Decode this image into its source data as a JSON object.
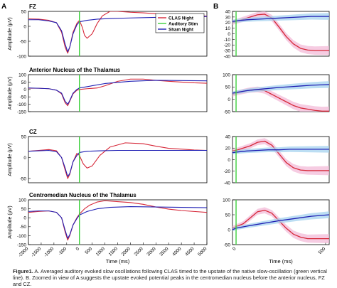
{
  "figure": {
    "panel_a_label": "A",
    "panel_b_label": "B"
  },
  "caption": {
    "label": "Figure1.",
    "text": "A. Averaged auditory evoked slow oscillations following CLAS timed to the upstate of the native slow-oscillation (green vertical line). B. Zoomed in view of A suggests the upstate evoked potential peaks in the centromedian nucleus before the anterior nucleus, FZ and CZ."
  },
  "colors": {
    "clas": "#d62839",
    "sham": "#1f1fb4",
    "stim": "#3cd03c",
    "clas_band": "#f2b6d6",
    "sham_band": "#9fd0ee"
  },
  "chart_data": [
    {
      "type": "line",
      "title": "FZ",
      "panel": "A",
      "xlabel": "",
      "ylabel": "Amplitude (μV)",
      "xlim": [
        -2000,
        5000
      ],
      "ylim": [
        -100,
        50
      ],
      "yticks": [
        50,
        0,
        -50,
        -100
      ],
      "stim_time": 0,
      "legend": {
        "position": "top-right",
        "entries": [
          "CLAS Night",
          "Auditory Stim",
          "Sham Night"
        ]
      },
      "series": [
        {
          "name": "CLAS Night",
          "x": [
            -2000,
            -1600,
            -1200,
            -900,
            -700,
            -560,
            -460,
            -380,
            -250,
            -100,
            0,
            120,
            200,
            300,
            500,
            700,
            900,
            1200,
            1500,
            2000,
            2500,
            3000,
            3500,
            4000,
            4500,
            5000
          ],
          "y": [
            25,
            24,
            20,
            12,
            -20,
            -70,
            -90,
            -70,
            -20,
            10,
            20,
            -5,
            -30,
            -40,
            -25,
            10,
            35,
            50,
            50,
            47,
            45,
            42,
            40,
            38,
            36,
            34
          ]
        },
        {
          "name": "Sham Night",
          "x": [
            -2000,
            -1600,
            -1200,
            -900,
            -700,
            -560,
            -460,
            -380,
            -250,
            -100,
            0,
            300,
            700,
            1200,
            2000,
            3000,
            4000,
            5000
          ],
          "y": [
            22,
            22,
            18,
            12,
            -15,
            -60,
            -85,
            -70,
            -25,
            5,
            15,
            20,
            24,
            26,
            28,
            30,
            32,
            33
          ]
        }
      ]
    },
    {
      "type": "line",
      "title": "Anterior Nucleus of the Thalamus",
      "panel": "A",
      "xlabel": "",
      "ylabel": "Amplitude (μV)",
      "xlim": [
        -2000,
        5000
      ],
      "ylim": [
        -150,
        100
      ],
      "yticks": [
        100,
        50,
        0,
        -50,
        -100,
        -150
      ],
      "stim_time": 0,
      "series": [
        {
          "name": "CLAS Night",
          "x": [
            -2000,
            -1600,
            -1200,
            -900,
            -700,
            -560,
            -460,
            -380,
            -250,
            -100,
            0,
            300,
            700,
            1000,
            1500,
            2000,
            2500,
            3000,
            3500,
            4000,
            4500,
            5000
          ],
          "y": [
            8,
            8,
            5,
            -5,
            -30,
            -90,
            -110,
            -80,
            -30,
            -5,
            0,
            5,
            10,
            25,
            55,
            70,
            70,
            62,
            55,
            50,
            45,
            42
          ]
        },
        {
          "name": "Sham Night",
          "x": [
            -2000,
            -1600,
            -1200,
            -900,
            -700,
            -560,
            -460,
            -380,
            -250,
            -100,
            0,
            500,
            1000,
            2000,
            3000,
            4000,
            5000
          ],
          "y": [
            10,
            8,
            5,
            -5,
            -25,
            -80,
            -100,
            -75,
            -25,
            0,
            10,
            25,
            40,
            55,
            62,
            60,
            58
          ]
        }
      ]
    },
    {
      "type": "line",
      "title": "CZ",
      "panel": "A",
      "xlabel": "",
      "ylabel": "Amplitude (μV)",
      "xlim": [
        -2000,
        5000
      ],
      "ylim": [
        -60,
        50
      ],
      "yticks": [
        50,
        0,
        -50
      ],
      "stim_time": 0,
      "series": [
        {
          "name": "CLAS Night",
          "x": [
            -2000,
            -1600,
            -1200,
            -900,
            -700,
            -560,
            -460,
            -380,
            -250,
            -100,
            0,
            150,
            300,
            500,
            800,
            1200,
            1800,
            2500,
            3000,
            3500,
            4000,
            4500,
            5000
          ],
          "y": [
            15,
            17,
            19,
            16,
            0,
            -30,
            -50,
            -40,
            -10,
            10,
            5,
            -15,
            -25,
            -20,
            5,
            25,
            35,
            33,
            27,
            22,
            20,
            18,
            17
          ]
        },
        {
          "name": "Sham Night",
          "x": [
            -2000,
            -1600,
            -1200,
            -900,
            -700,
            -560,
            -460,
            -380,
            -250,
            -100,
            0,
            300,
            800,
            1500,
            2500,
            3500,
            4500,
            5000
          ],
          "y": [
            15,
            16,
            17,
            14,
            0,
            -25,
            -45,
            -38,
            -10,
            5,
            12,
            15,
            16,
            17,
            17,
            17,
            17,
            17
          ]
        }
      ]
    },
    {
      "type": "line",
      "title": "Centromedian Nucleus of the Thalamus",
      "panel": "A",
      "xlabel": "Time (ms)",
      "ylabel": "Amplitude (μV)",
      "xlim": [
        -2000,
        5000
      ],
      "ylim": [
        -150,
        100
      ],
      "yticks": [
        100,
        50,
        0,
        -50,
        -100,
        -150
      ],
      "xticks": [
        -2000,
        -1500,
        -1000,
        -500,
        0,
        500,
        1000,
        1500,
        2000,
        2500,
        3000,
        3500,
        4000,
        4500,
        5000
      ],
      "stim_time": 0,
      "series": [
        {
          "name": "CLAS Night",
          "x": [
            -2000,
            -1600,
            -1200,
            -900,
            -700,
            -560,
            -460,
            -380,
            -250,
            -100,
            0,
            200,
            400,
            700,
            1000,
            1500,
            2000,
            2500,
            3000,
            3500,
            4000,
            4500,
            5000
          ],
          "y": [
            30,
            35,
            38,
            30,
            0,
            -80,
            -125,
            -100,
            -40,
            0,
            20,
            50,
            70,
            88,
            95,
            90,
            85,
            75,
            60,
            48,
            40,
            35,
            30
          ]
        },
        {
          "name": "Sham Night",
          "x": [
            -2000,
            -1600,
            -1200,
            -900,
            -700,
            -560,
            -460,
            -380,
            -250,
            -100,
            0,
            300,
            700,
            1200,
            2000,
            3000,
            4000,
            5000
          ],
          "y": [
            35,
            38,
            38,
            30,
            0,
            -70,
            -115,
            -95,
            -40,
            -5,
            15,
            35,
            50,
            58,
            62,
            60,
            58,
            56
          ]
        }
      ]
    },
    {
      "type": "line",
      "title": "",
      "panel": "B",
      "xlabel": "",
      "ylabel": "",
      "xlim": [
        -20,
        520
      ],
      "ylim": [
        -40,
        40
      ],
      "yticks": [
        40,
        30,
        20,
        10,
        0,
        -10,
        -20,
        -30,
        -40
      ],
      "stim_time": 0,
      "series": [
        {
          "name": "CLAS Night",
          "x": [
            -20,
            0,
            40,
            80,
            120,
            160,
            200,
            240,
            280,
            320,
            360,
            400,
            440,
            480,
            520
          ],
          "y": [
            20,
            22,
            26,
            30,
            34,
            35,
            28,
            12,
            -5,
            -18,
            -26,
            -29,
            -30,
            -30,
            -30
          ]
        },
        {
          "name": "Sham Night",
          "x": [
            -20,
            0,
            60,
            120,
            180,
            240,
            300,
            360,
            420,
            480,
            520
          ],
          "y": [
            22,
            23,
            25,
            26,
            27,
            28,
            29,
            30,
            31,
            31,
            31
          ]
        }
      ]
    },
    {
      "type": "line",
      "title": "",
      "panel": "B",
      "xlabel": "",
      "ylabel": "",
      "xlim": [
        -20,
        520
      ],
      "ylim": [
        -50,
        100
      ],
      "yticks": [
        100,
        50,
        0,
        -50
      ],
      "stim_time": 0,
      "series": [
        {
          "name": "CLAS Night",
          "x": [
            -20,
            0,
            40,
            80,
            120,
            160,
            200,
            240,
            280,
            320,
            360,
            400,
            440,
            480,
            520
          ],
          "y": [
            20,
            25,
            32,
            38,
            40,
            35,
            20,
            5,
            -10,
            -25,
            -35,
            -40,
            -45,
            -48,
            -48
          ]
        },
        {
          "name": "Sham Night",
          "x": [
            -20,
            0,
            60,
            120,
            180,
            240,
            300,
            360,
            420,
            480,
            520
          ],
          "y": [
            25,
            28,
            35,
            40,
            44,
            48,
            51,
            54,
            57,
            59,
            60
          ]
        }
      ]
    },
    {
      "type": "line",
      "title": "",
      "panel": "B",
      "xlabel": "",
      "ylabel": "",
      "xlim": [
        -20,
        520
      ],
      "ylim": [
        -40,
        40
      ],
      "yticks": [
        40,
        20,
        0,
        -20,
        -40
      ],
      "stim_time": 0,
      "series": [
        {
          "name": "CLAS Night",
          "x": [
            -20,
            0,
            40,
            80,
            120,
            160,
            200,
            240,
            280,
            320,
            360,
            400,
            440,
            480,
            520
          ],
          "y": [
            15,
            16,
            20,
            24,
            30,
            32,
            25,
            10,
            -5,
            -14,
            -18,
            -19,
            -19,
            -19,
            -19
          ]
        },
        {
          "name": "Sham Night",
          "x": [
            -20,
            0,
            60,
            120,
            180,
            240,
            300,
            360,
            420,
            480,
            520
          ],
          "y": [
            12,
            13,
            15,
            16,
            17,
            17,
            18,
            18,
            18,
            18,
            18
          ]
        }
      ]
    },
    {
      "type": "line",
      "title": "",
      "panel": "B",
      "xlabel": "Time (ms)",
      "ylabel": "",
      "xlim": [
        -20,
        520
      ],
      "ylim": [
        -50,
        100
      ],
      "yticks": [
        100,
        50,
        0,
        -50
      ],
      "xticks": [
        0,
        500
      ],
      "stim_time": 0,
      "series": [
        {
          "name": "CLAS Night",
          "x": [
            -20,
            0,
            40,
            80,
            120,
            160,
            200,
            240,
            280,
            320,
            360,
            400,
            440,
            480,
            520
          ],
          "y": [
            5,
            10,
            20,
            40,
            60,
            65,
            55,
            30,
            5,
            -15,
            -25,
            -30,
            -30,
            -30,
            -30
          ]
        },
        {
          "name": "Sham Night",
          "x": [
            -20,
            0,
            60,
            120,
            180,
            240,
            300,
            360,
            420,
            480,
            520
          ],
          "y": [
            0,
            5,
            12,
            18,
            24,
            30,
            35,
            40,
            45,
            48,
            50
          ]
        }
      ]
    }
  ]
}
